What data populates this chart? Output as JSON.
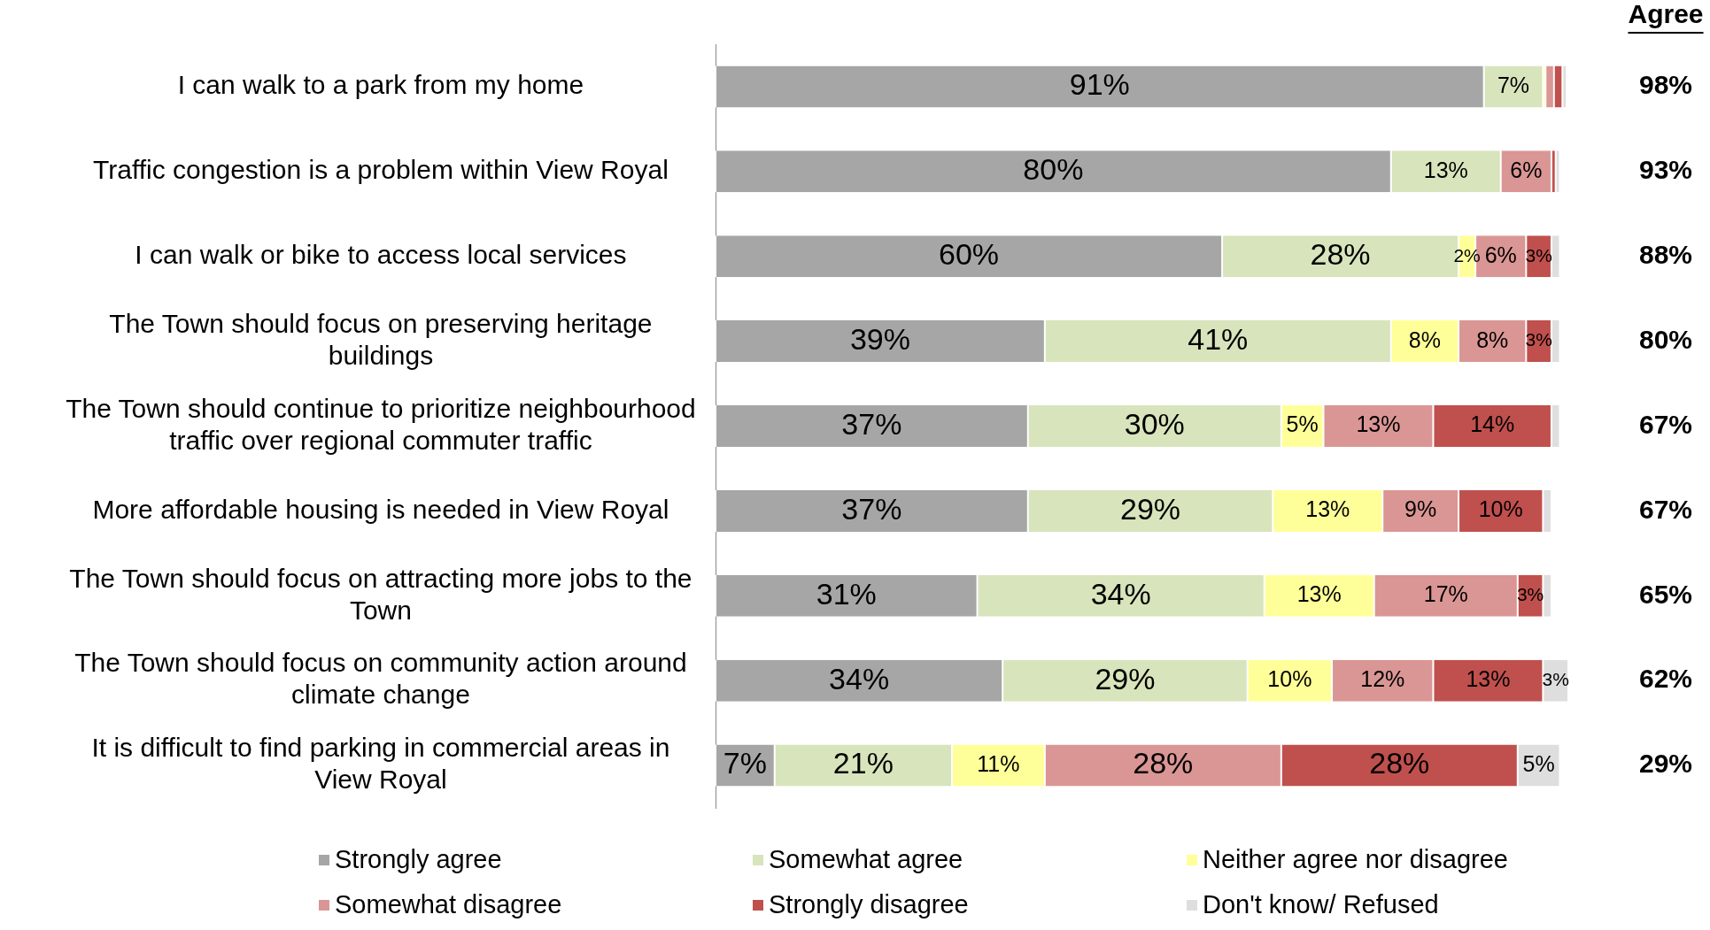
{
  "chart_data": {
    "type": "bar",
    "orientation": "horizontal",
    "stacked": true,
    "categories": [
      "I can walk to a park from my home",
      "Traffic congestion is a problem within View Royal",
      "I can walk or bike to access local services",
      "The Town should focus on preserving heritage buildings",
      "The Town should continue to prioritize neighbourhood traffic over regional commuter traffic",
      "More affordable housing is needed in View Royal",
      "The Town should focus on attracting more jobs to the Town",
      "The Town should focus on community action around climate change",
      "It is difficult to find parking in commercial areas in View Royal"
    ],
    "series": [
      {
        "name": "Strongly agree",
        "color": "#a6a6a6",
        "values": [
          91,
          80,
          60,
          39,
          37,
          37,
          31,
          34,
          7
        ],
        "value_labels": [
          "91%",
          "80%",
          "60%",
          "39%",
          "37%",
          "37%",
          "31%",
          "34%",
          "7%"
        ]
      },
      {
        "name": "Somewhat agree",
        "color": "#d8e4bc",
        "values": [
          7,
          13,
          28,
          41,
          30,
          29,
          34,
          29,
          21
        ],
        "value_labels": [
          "7%",
          "13%",
          "28%",
          "41%",
          "30%",
          "29%",
          "34%",
          "29%",
          "21%"
        ]
      },
      {
        "name": "Neither agree nor disagree",
        "color": "#ffff99",
        "values": [
          0.3,
          0,
          2,
          8,
          5,
          13,
          13,
          10,
          11
        ],
        "value_labels": [
          null,
          null,
          "2%",
          "8%",
          "5%",
          "13%",
          "13%",
          "10%",
          "11%"
        ]
      },
      {
        "name": "Somewhat disagree",
        "color": "#da9694",
        "values": [
          1,
          6,
          6,
          8,
          13,
          9,
          17,
          12,
          28
        ],
        "value_labels": [
          null,
          "6%",
          "6%",
          "8%",
          "13%",
          "9%",
          "17%",
          "12%",
          "28%"
        ]
      },
      {
        "name": "Strongly disagree",
        "color": "#c0504d",
        "values": [
          1,
          0.5,
          3,
          3,
          14,
          10,
          3,
          13,
          28
        ],
        "value_labels": [
          null,
          null,
          "3%",
          "3%",
          "14%",
          "10%",
          "3%",
          "13%",
          "28%"
        ]
      },
      {
        "name": "Don't know/ Refused",
        "color": "#dedede",
        "values": [
          0.5,
          0.5,
          1,
          1,
          1,
          1,
          1,
          3,
          5
        ],
        "value_labels": [
          null,
          null,
          null,
          null,
          null,
          null,
          null,
          "3%",
          "5%"
        ]
      }
    ],
    "annotations": [
      "Agree",
      "98%",
      "93%",
      "88%",
      "80%",
      "67%",
      "67%",
      "65%",
      "62%",
      "29%"
    ],
    "legend": "bottom",
    "grid": false
  }
}
